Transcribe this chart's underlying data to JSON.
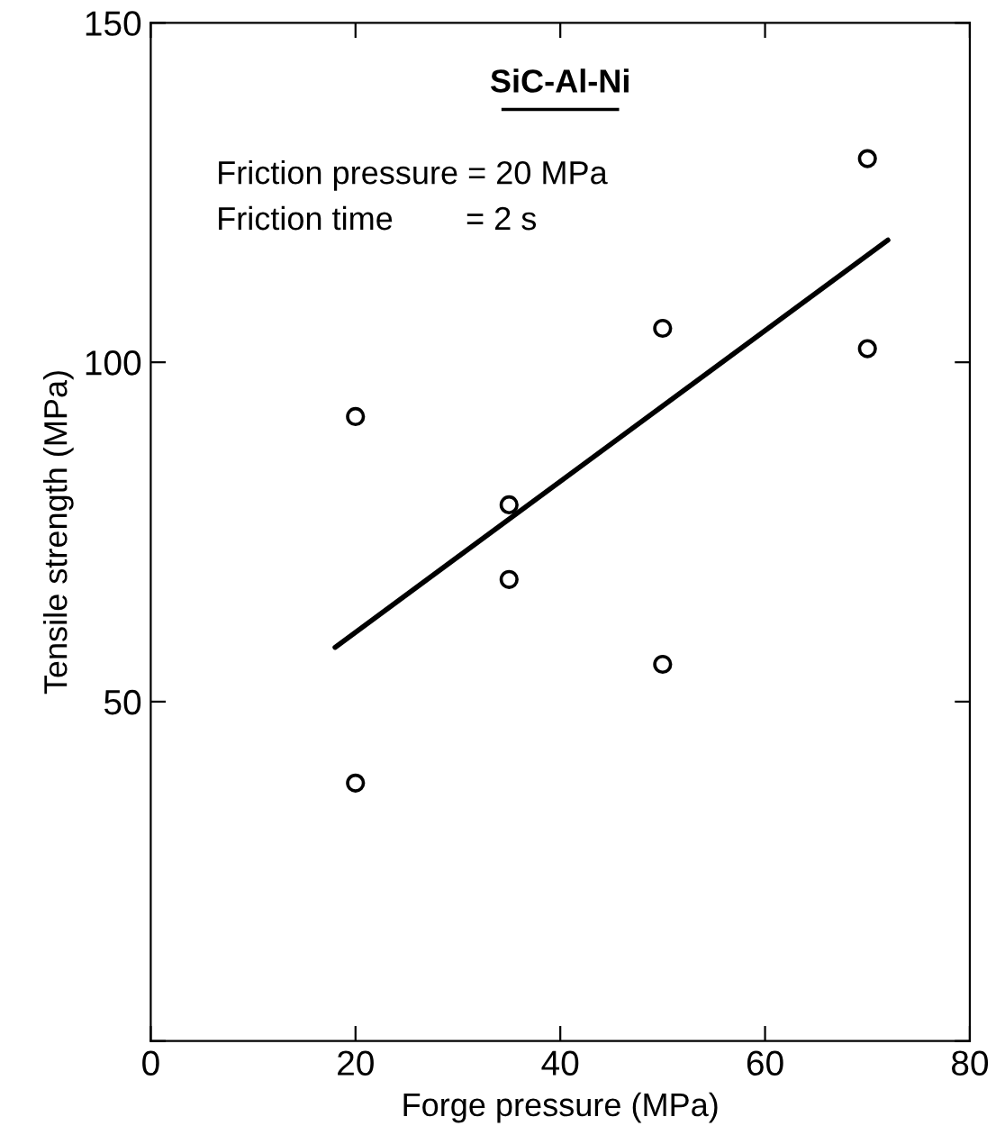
{
  "chart_data": {
    "type": "scatter",
    "title": "SiC-Al-Ni",
    "xlabel": "Forge pressure (MPa)",
    "ylabel": "Tensile strength (MPa)",
    "annotations": [
      "Friction pressure = 20 MPa",
      "Friction time        = 2 s"
    ],
    "series": [
      {
        "color": "#000000",
        "marker": "circle",
        "x": [
          20,
          20,
          35,
          35,
          50,
          50,
          70,
          70
        ],
        "values": [
          92,
          38,
          79,
          68,
          105,
          55.5,
          130,
          102
        ]
      },
      {
        "type": "line",
        "color": "#000000",
        "marker": "none",
        "x": [
          18,
          72
        ],
        "values": [
          58,
          118
        ]
      }
    ],
    "xlim": [
      0,
      80
    ],
    "ylim": [
      0,
      150
    ],
    "xticks": [
      0,
      20,
      40,
      60,
      80
    ],
    "yticks": [
      {
        "value": 0,
        "label": null
      },
      50,
      100,
      150
    ],
    "grid": false,
    "legend": false
  }
}
